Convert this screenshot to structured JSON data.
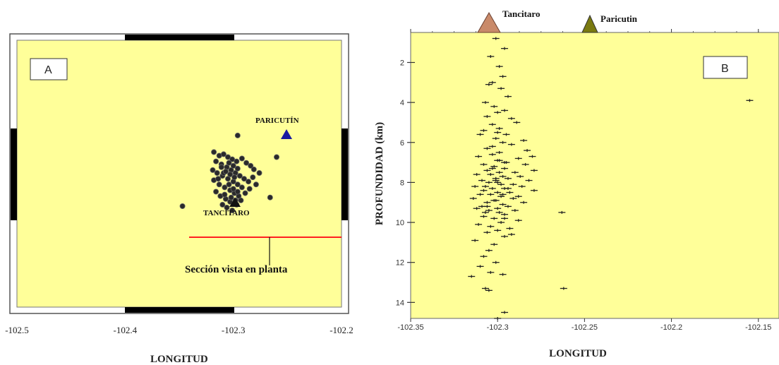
{
  "panel_a": {
    "label": "A",
    "xlabel": "LONGITUD",
    "xticks": [
      "-102.5",
      "-102.4",
      "-102.3",
      "-102.2"
    ],
    "volcano_labels": {
      "paricutin": "PARICUTÍN",
      "tancitaro": "TANCÍTARO"
    },
    "section_label": "Sección vista en planta",
    "colors": {
      "background": "#ffff99",
      "section_line": "#ff2020",
      "paricutin_marker": "#1a1aa0",
      "tancitaro_marker": "#111111"
    }
  },
  "panel_b": {
    "label": "B",
    "xlabel": "LONGITUD",
    "ylabel": "PROFUNDIDAD (km)",
    "xticks": [
      "-102.35",
      "-102.3",
      "-102.25",
      "-102.2",
      "-102.15"
    ],
    "yticks": [
      "2",
      "4",
      "6",
      "8",
      "10",
      "12",
      "14"
    ],
    "volcano_labels": {
      "tancitaro": "Tancitaro",
      "paricutin": "Paricutin"
    },
    "colors": {
      "background": "#ffff99",
      "tancitaro_marker": "#c98a6a",
      "paricutin_marker": "#7a7a10"
    }
  },
  "chart_data": [
    {
      "type": "scatter",
      "title": "",
      "xlabel": "LONGITUD",
      "ylabel": "",
      "xlim": [
        -102.5,
        -102.2
      ],
      "grid": false,
      "series": [
        {
          "values": [
            [
              -102.318,
              19.465
            ],
            [
              -102.313,
              19.46
            ],
            [
              -102.309,
              19.462
            ],
            [
              -102.305,
              19.458
            ],
            [
              -102.301,
              19.455
            ],
            [
              -102.297,
              19.452
            ],
            [
              -102.292,
              19.456
            ],
            [
              -102.288,
              19.45
            ],
            [
              -102.284,
              19.446
            ],
            [
              -102.281,
              19.441
            ],
            [
              -102.316,
              19.452
            ],
            [
              -102.311,
              19.448
            ],
            [
              -102.306,
              19.444
            ],
            [
              -102.302,
              19.44
            ],
            [
              -102.298,
              19.436
            ],
            [
              -102.294,
              19.432
            ],
            [
              -102.29,
              19.428
            ],
            [
              -102.286,
              19.424
            ],
            [
              -102.319,
              19.44
            ],
            [
              -102.315,
              19.436
            ],
            [
              -102.31,
              19.432
            ],
            [
              -102.305,
              19.428
            ],
            [
              -102.3,
              19.424
            ],
            [
              -102.296,
              19.42
            ],
            [
              -102.292,
              19.416
            ],
            [
              -102.318,
              19.426
            ],
            [
              -102.313,
              19.42
            ],
            [
              -102.308,
              19.416
            ],
            [
              -102.303,
              19.412
            ],
            [
              -102.299,
              19.408
            ],
            [
              -102.295,
              19.404
            ],
            [
              -102.316,
              19.41
            ],
            [
              -102.312,
              19.404
            ],
            [
              -102.307,
              19.4
            ],
            [
              -102.303,
              19.396
            ],
            [
              -102.31,
              19.392
            ],
            [
              -102.306,
              19.388
            ],
            [
              -102.301,
              19.384
            ],
            [
              -102.297,
              19.392
            ],
            [
              -102.293,
              19.398
            ],
            [
              -102.289,
              19.408
            ],
            [
              -102.285,
              19.414
            ],
            [
              -102.282,
              19.43
            ],
            [
              -102.279,
              19.42
            ],
            [
              -102.276,
              19.436
            ],
            [
              -102.304,
              19.45
            ],
            [
              -102.3,
              19.446
            ],
            [
              -102.296,
              19.442
            ],
            [
              -102.309,
              19.436
            ],
            [
              -102.304,
              19.42
            ],
            [
              -102.3,
              19.414
            ],
            [
              -102.296,
              19.41
            ],
            [
              -102.308,
              19.406
            ],
            [
              -102.299,
              19.43
            ],
            [
              -102.303,
              19.434
            ],
            [
              -102.307,
              19.438
            ],
            [
              -102.311,
              19.444
            ],
            [
              -102.314,
              19.428
            ],
            [
              -102.302,
              19.402
            ],
            [
              -102.298,
              19.398
            ],
            [
              -102.347,
              19.39
            ],
            [
              -102.296,
              19.488
            ],
            [
              -102.26,
              19.458
            ],
            [
              -102.266,
              19.402
            ]
          ]
        }
      ]
    },
    {
      "type": "scatter",
      "title": "",
      "xlabel": "LONGITUD",
      "ylabel": "PROFUNDIDAD (km)",
      "xlim": [
        -102.35,
        -102.15
      ],
      "ylim": [
        14.8,
        0.5
      ],
      "grid": false,
      "series": [
        {
          "x": [
            -102.301,
            -102.296,
            -102.304,
            -102.299,
            -102.297,
            -102.303,
            -102.305,
            -102.298,
            -102.294,
            -102.307,
            -102.302,
            -102.296,
            -102.3,
            -102.306,
            -102.292,
            -102.289,
            -102.303,
            -102.299,
            -102.308,
            -102.295,
            -102.31,
            -102.301,
            -102.285,
            -102.297,
            -102.292,
            -102.306,
            -102.283,
            -102.299,
            -102.303,
            -102.28,
            -102.311,
            -102.288,
            -102.3,
            -102.295,
            -102.308,
            -102.284,
            -102.302,
            -102.296,
            -102.279,
            -102.306,
            -102.299,
            -102.29,
            -102.312,
            -102.304,
            -102.297,
            -102.287,
            -102.301,
            -102.294,
            -102.309,
            -102.282,
            -102.3,
            -102.305,
            -102.291,
            -102.298,
            -102.313,
            -102.286,
            -102.303,
            -102.296,
            -102.308,
            -102.279,
            -102.3,
            -102.293,
            -102.31,
            -102.304,
            -102.288,
            -102.298,
            -102.314,
            -102.291,
            -102.302,
            -102.285,
            -102.306,
            -102.297,
            -102.309,
            -102.294,
            -102.312,
            -102.3,
            -102.305,
            -102.29,
            -102.299,
            -102.307,
            -102.296,
            -102.308,
            -102.302,
            -102.288,
            -102.298,
            -102.311,
            -102.304,
            -102.293,
            -102.3,
            -102.306,
            -102.296,
            -102.313,
            -102.302,
            -102.305,
            -102.308,
            -102.301,
            -102.31,
            -102.304,
            -102.315,
            -102.307,
            -102.263,
            -102.155,
            -102.262,
            -102.296,
            -102.297,
            -102.305,
            -102.3,
            -102.296,
            -102.303,
            -102.3,
            -102.307,
            -102.301,
            -102.296,
            -102.292,
            -102.303,
            -102.299,
            -102.306,
            -102.297,
            -102.301,
            -102.294
          ],
          "y": [
            0.8,
            1.3,
            1.7,
            2.2,
            2.7,
            3.0,
            3.1,
            3.3,
            3.7,
            4.0,
            4.2,
            4.4,
            4.5,
            4.7,
            4.8,
            5.0,
            5.1,
            5.3,
            5.4,
            5.6,
            5.6,
            5.8,
            5.9,
            6.0,
            6.1,
            6.3,
            6.4,
            6.5,
            6.6,
            6.7,
            6.7,
            6.8,
            6.9,
            7.0,
            7.1,
            7.1,
            7.2,
            7.3,
            7.4,
            7.4,
            7.5,
            7.5,
            7.6,
            7.6,
            7.7,
            7.7,
            7.8,
            7.8,
            7.9,
            7.9,
            8.0,
            8.0,
            8.1,
            8.1,
            8.2,
            8.2,
            8.3,
            8.3,
            8.4,
            8.4,
            8.5,
            8.5,
            8.6,
            8.6,
            8.7,
            8.7,
            8.8,
            8.8,
            8.9,
            9.0,
            9.0,
            9.1,
            9.2,
            9.2,
            9.3,
            9.3,
            9.4,
            9.4,
            9.5,
            9.5,
            9.6,
            9.7,
            9.8,
            9.9,
            10.0,
            10.1,
            10.2,
            10.3,
            10.4,
            10.5,
            10.7,
            10.9,
            11.1,
            11.4,
            11.7,
            12.0,
            12.2,
            12.5,
            12.7,
            13.3,
            9.5,
            3.9,
            13.3,
            14.5,
            12.6,
            13.4,
            14.8,
            7.0,
            6.2,
            5.5,
            8.2,
            8.9,
            9.8,
            10.6,
            7.3,
            6.9,
            9.2,
            8.6,
            7.9,
            8.3
          ]
        }
      ]
    }
  ]
}
